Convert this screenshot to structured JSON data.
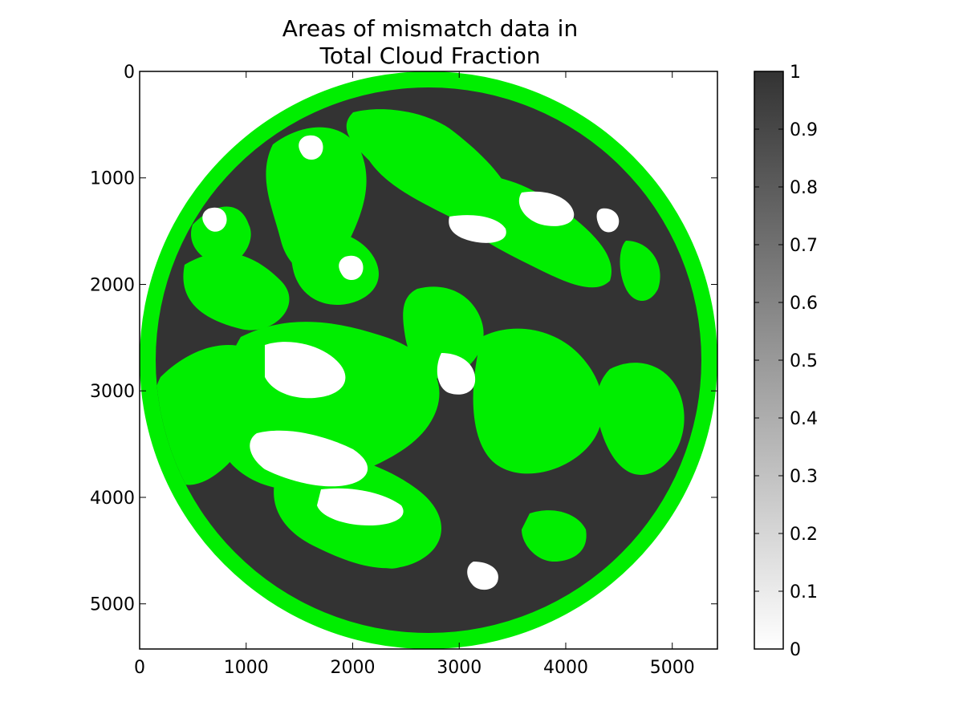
{
  "chart_data": {
    "type": "heatmap",
    "title_lines": [
      "Areas of mismatch data in",
      "Total Cloud Fraction"
    ],
    "xlabel": "",
    "ylabel": "",
    "xlim": [
      0,
      5424
    ],
    "ylim": [
      5424,
      0
    ],
    "x_ticks": [
      0,
      1000,
      2000,
      3000,
      4000,
      5000
    ],
    "y_ticks": [
      0,
      1000,
      2000,
      3000,
      4000,
      5000
    ],
    "x_tick_labels": [
      "0",
      "1000",
      "2000",
      "3000",
      "4000",
      "5000"
    ],
    "y_tick_labels": [
      "0",
      "1000",
      "2000",
      "3000",
      "4000",
      "5000"
    ],
    "image": {
      "description_values": "full-disk satellite field, values 0 (white) to 1 (dark gray), mismatch areas highlighted in bright green",
      "disk_center": [
        2712,
        2712
      ],
      "disk_radius": 2712,
      "limb_ring_width": 160,
      "mismatch_color": "#00ee00",
      "background_value_color": "#333333"
    },
    "colorbar": {
      "colormap": "gray_r",
      "vmin": 0,
      "vmax": 1,
      "ticks": [
        0,
        0.1,
        0.2,
        0.3,
        0.4,
        0.5,
        0.6,
        0.7,
        0.8,
        0.9,
        1
      ],
      "tick_labels": [
        "0",
        "0.1",
        "0.2",
        "0.3",
        "0.4",
        "0.5",
        "0.6",
        "0.7",
        "0.8",
        "0.9",
        "1"
      ],
      "low_color": "#ffffff",
      "high_color": "#333333"
    }
  }
}
